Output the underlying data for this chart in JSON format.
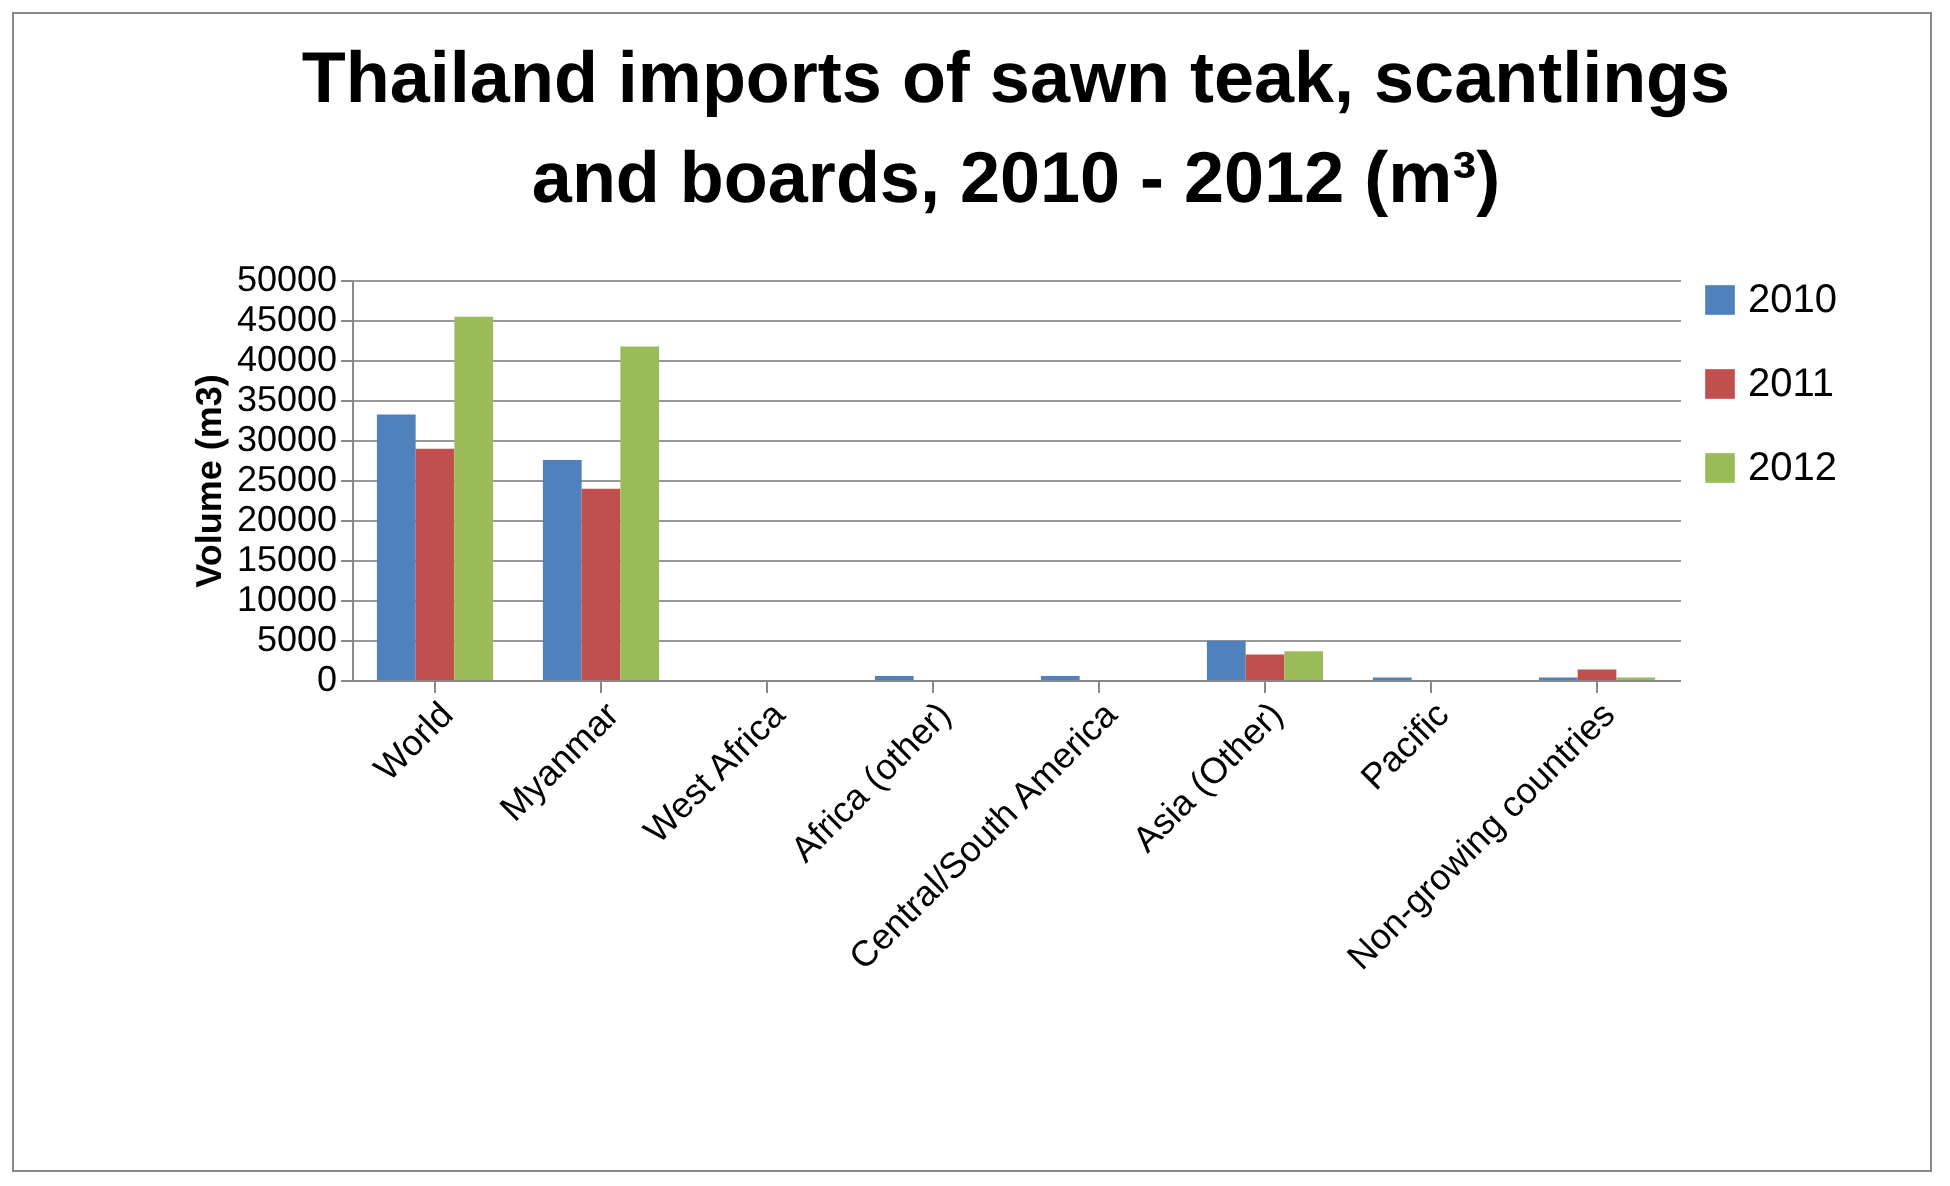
{
  "chart_data": {
    "type": "bar",
    "title": "Thailand imports of sawn teak, scantlings and boards, 2010 - 2012 (m³)",
    "ylabel": "Volume (m3)",
    "categories": [
      "World",
      "Myanmar",
      "West Africa",
      "Africa (other)",
      "Central/South America",
      "Asia (Other)",
      "Pacific",
      "Non-growing countries"
    ],
    "series": [
      {
        "name": "2010",
        "color": "#4f81bd",
        "values": [
          33200,
          27500,
          0,
          500,
          500,
          4900,
          300,
          300
        ]
      },
      {
        "name": "2011",
        "color": "#c0504d",
        "values": [
          28900,
          23900,
          0,
          0,
          0,
          3200,
          0,
          1300
        ]
      },
      {
        "name": "2012",
        "color": "#9bbb59",
        "values": [
          45400,
          41700,
          0,
          0,
          0,
          3600,
          0,
          300
        ]
      }
    ],
    "ylim": [
      0,
      50000
    ],
    "yticks": [
      0,
      5000,
      10000,
      15000,
      20000,
      25000,
      30000,
      35000,
      40000,
      45000,
      50000
    ],
    "grid": "y",
    "legend": "right"
  }
}
